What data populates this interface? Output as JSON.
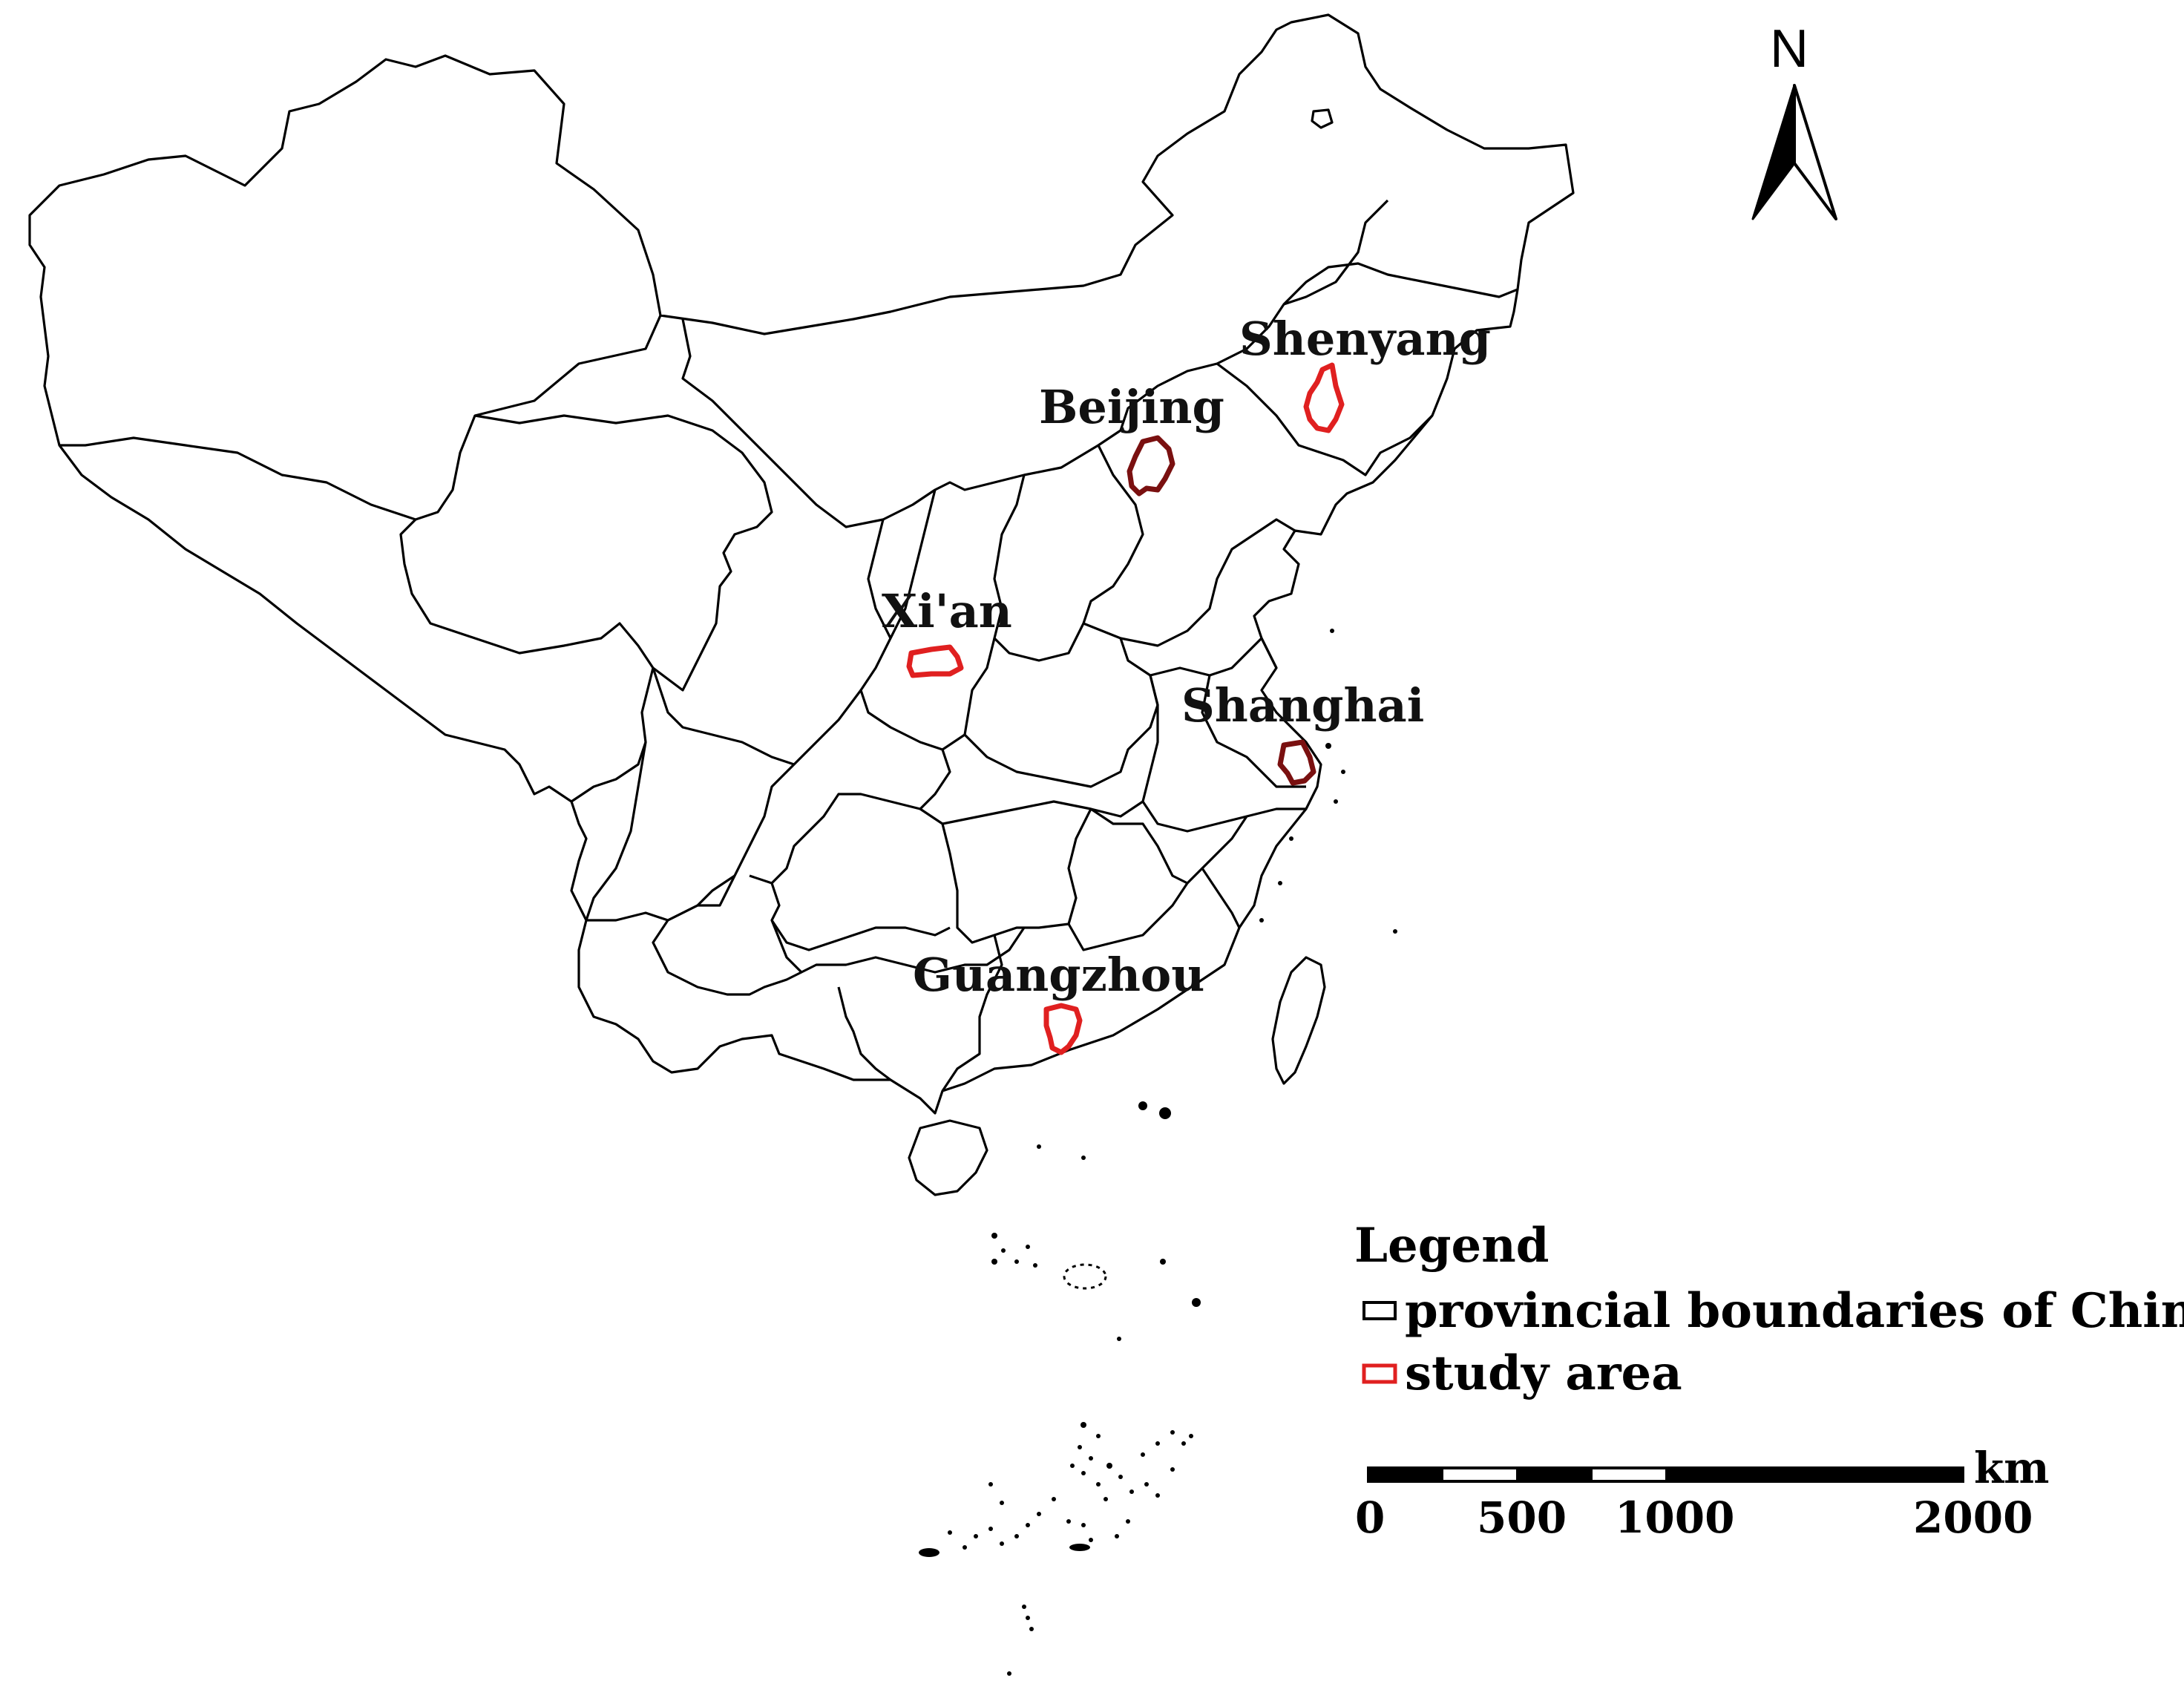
{
  "north_arrow": {
    "label": "N"
  },
  "cities": {
    "shenyang": "Shenyang",
    "beijing": "Beijing",
    "xian": "Xi'an",
    "shanghai": "Shanghai",
    "guangzhou": "Guangzhou"
  },
  "legend": {
    "title": "Legend",
    "items": [
      {
        "label": "provincial boundaries of China",
        "color": "#000000"
      },
      {
        "label": "study area",
        "color": "#e02020"
      }
    ]
  },
  "scale_bar": {
    "unit": "km",
    "ticks": [
      "0",
      "500",
      "1000",
      "2000"
    ]
  },
  "colors": {
    "boundary": "#000000",
    "study_area": "#e02020",
    "study_area_dark": "#7a1010"
  }
}
